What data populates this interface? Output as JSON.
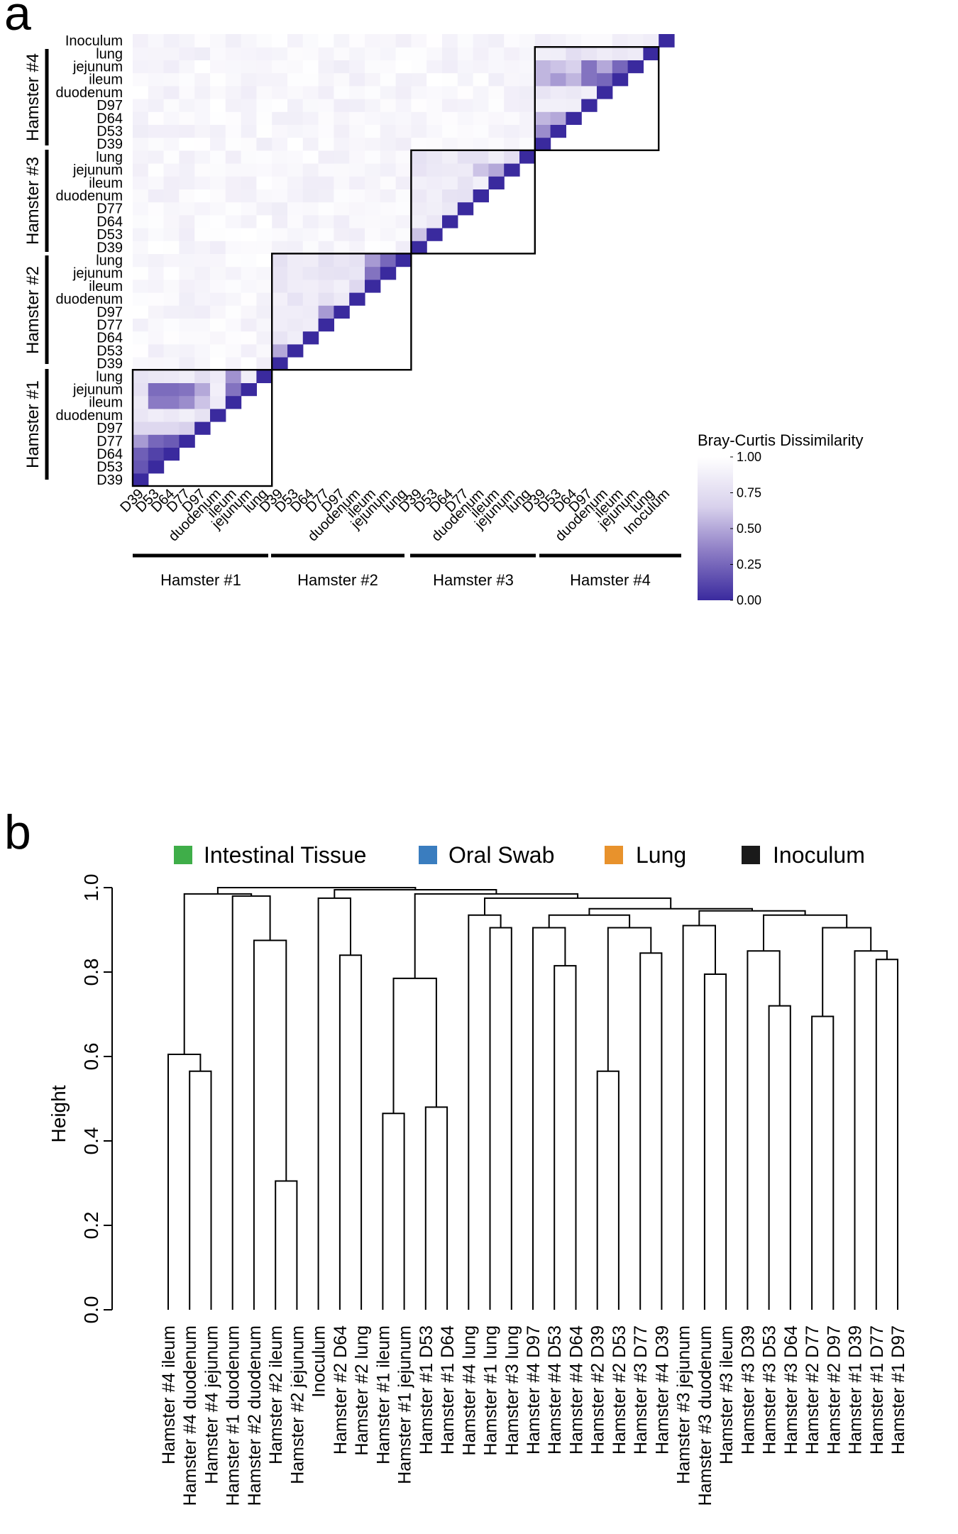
{
  "panel_a": {
    "letter": "a"
  },
  "panel_b": {
    "letter": "b"
  },
  "chart_data": [
    {
      "type": "heatmap",
      "title": "",
      "colorbar": {
        "title": "Bray-Curtis Dissimilarity",
        "ticks": [
          "1.00",
          "0.75",
          "0.50",
          "0.25",
          "0.00"
        ],
        "range": [
          0,
          1
        ],
        "low_color": "#3a2a9e",
        "mid_color": "#9d8fcf",
        "high_color": "#ffffff"
      },
      "samples": [
        {
          "group": 0,
          "label": "D39"
        },
        {
          "group": 0,
          "label": "D53"
        },
        {
          "group": 0,
          "label": "D64"
        },
        {
          "group": 0,
          "label": "D77"
        },
        {
          "group": 0,
          "label": "D97"
        },
        {
          "group": 0,
          "label": "duodenum"
        },
        {
          "group": 0,
          "label": "ileum"
        },
        {
          "group": 0,
          "label": "jejunum"
        },
        {
          "group": 0,
          "label": "lung"
        },
        {
          "group": 1,
          "label": "D39"
        },
        {
          "group": 1,
          "label": "D53"
        },
        {
          "group": 1,
          "label": "D64"
        },
        {
          "group": 1,
          "label": "D77"
        },
        {
          "group": 1,
          "label": "D97"
        },
        {
          "group": 1,
          "label": "duodenum"
        },
        {
          "group": 1,
          "label": "ileum"
        },
        {
          "group": 1,
          "label": "jejunum"
        },
        {
          "group": 1,
          "label": "lung"
        },
        {
          "group": 2,
          "label": "D39"
        },
        {
          "group": 2,
          "label": "D53"
        },
        {
          "group": 2,
          "label": "D64"
        },
        {
          "group": 2,
          "label": "D77"
        },
        {
          "group": 2,
          "label": "duodenum"
        },
        {
          "group": 2,
          "label": "ileum"
        },
        {
          "group": 2,
          "label": "jejunum"
        },
        {
          "group": 2,
          "label": "lung"
        },
        {
          "group": 3,
          "label": "D39"
        },
        {
          "group": 3,
          "label": "D53"
        },
        {
          "group": 3,
          "label": "D64"
        },
        {
          "group": 3,
          "label": "D97"
        },
        {
          "group": 3,
          "label": "duodenum"
        },
        {
          "group": 3,
          "label": "ileum"
        },
        {
          "group": 3,
          "label": "jejunum"
        },
        {
          "group": 3,
          "label": "lung"
        },
        {
          "group": 4,
          "label": "Inoculum"
        }
      ],
      "groups": [
        "Hamster #1",
        "Hamster #2",
        "Hamster #3",
        "Hamster #4"
      ],
      "notable_values": [
        {
          "a": 0,
          "b": 1,
          "value": 0.18
        },
        {
          "a": 0,
          "b": 2,
          "value": 0.22
        },
        {
          "a": 1,
          "b": 2,
          "value": 0.1
        },
        {
          "a": 0,
          "b": 3,
          "value": 0.45
        },
        {
          "a": 1,
          "b": 3,
          "value": 0.25
        },
        {
          "a": 2,
          "b": 3,
          "value": 0.2
        },
        {
          "a": 0,
          "b": 4,
          "value": 0.7
        },
        {
          "a": 1,
          "b": 4,
          "value": 0.7
        },
        {
          "a": 2,
          "b": 4,
          "value": 0.7
        },
        {
          "a": 3,
          "b": 4,
          "value": 0.65
        },
        {
          "a": 6,
          "b": 1,
          "value": 0.33
        },
        {
          "a": 6,
          "b": 2,
          "value": 0.33
        },
        {
          "a": 6,
          "b": 3,
          "value": 0.4
        },
        {
          "a": 6,
          "b": 4,
          "value": 0.6
        },
        {
          "a": 7,
          "b": 1,
          "value": 0.27
        },
        {
          "a": 7,
          "b": 2,
          "value": 0.27
        },
        {
          "a": 7,
          "b": 3,
          "value": 0.3
        },
        {
          "a": 7,
          "b": 4,
          "value": 0.5
        },
        {
          "a": 7,
          "b": 6,
          "value": 0.3
        },
        {
          "a": 6,
          "b": 8,
          "value": 0.42
        },
        {
          "a": 9,
          "b": 10,
          "value": 0.5
        },
        {
          "a": 12,
          "b": 13,
          "value": 0.45
        },
        {
          "a": 11,
          "b": 13,
          "value": 0.85
        },
        {
          "a": 15,
          "b": 14,
          "value": 0.7
        },
        {
          "a": 15,
          "b": 16,
          "value": 0.3
        },
        {
          "a": 17,
          "b": 16,
          "value": 0.25
        },
        {
          "a": 17,
          "b": 15,
          "value": 0.45
        },
        {
          "a": 18,
          "b": 19,
          "value": 0.6
        },
        {
          "a": 23,
          "b": 24,
          "value": 0.5
        },
        {
          "a": 24,
          "b": 22,
          "value": 0.6
        },
        {
          "a": 26,
          "b": 27,
          "value": 0.4
        },
        {
          "a": 26,
          "b": 28,
          "value": 0.55
        },
        {
          "a": 27,
          "b": 28,
          "value": 0.5
        },
        {
          "a": 31,
          "b": 26,
          "value": 0.55
        },
        {
          "a": 31,
          "b": 27,
          "value": 0.45
        },
        {
          "a": 31,
          "b": 28,
          "value": 0.55
        },
        {
          "a": 32,
          "b": 26,
          "value": 0.55
        },
        {
          "a": 32,
          "b": 27,
          "value": 0.6
        },
        {
          "a": 32,
          "b": 28,
          "value": 0.65
        },
        {
          "a": 31,
          "b": 29,
          "value": 0.3
        },
        {
          "a": 32,
          "b": 29,
          "value": 0.3
        },
        {
          "a": 32,
          "b": 30,
          "value": 0.5
        },
        {
          "a": 32,
          "b": 31,
          "value": 0.25
        },
        {
          "a": 31,
          "b": 30,
          "value": 0.25
        }
      ],
      "default_value": 0.93
    },
    {
      "type": "dendrogram",
      "ylabel": "Height",
      "ylim": [
        0,
        1
      ],
      "yticks": [
        "0.0",
        "0.2",
        "0.4",
        "0.6",
        "0.8",
        "1.0"
      ],
      "legend": [
        {
          "label": "Intestinal Tissue",
          "color": "#3fae49"
        },
        {
          "label": "Oral Swab",
          "color": "#3a7dbf"
        },
        {
          "label": "Lung",
          "color": "#e8922c"
        },
        {
          "label": "Inoculum",
          "color": "#1a1a1a"
        }
      ],
      "leaves": [
        {
          "label": "Hamster #4 ileum",
          "cat": 0
        },
        {
          "label": "Hamster #4 duodenum",
          "cat": 0
        },
        {
          "label": "Hamster #4 jejunum",
          "cat": 0
        },
        {
          "label": "Hamster #1 duodenum",
          "cat": 0
        },
        {
          "label": "Hamster #2 duodenum",
          "cat": 0
        },
        {
          "label": "Hamster #2 ileum",
          "cat": 0
        },
        {
          "label": "Hamster #2 jejunum",
          "cat": 0
        },
        {
          "label": "Inoculum",
          "cat": 3
        },
        {
          "label": "Hamster #2 D64",
          "cat": 1
        },
        {
          "label": "Hamster #2 lung",
          "cat": 2
        },
        {
          "label": "Hamster #1 ileum",
          "cat": 0
        },
        {
          "label": "Hamster #1 jejunum",
          "cat": 0
        },
        {
          "label": "Hamster #1 D53",
          "cat": 1
        },
        {
          "label": "Hamster #1 D64",
          "cat": 1
        },
        {
          "label": "Hamster #4 lung",
          "cat": 2
        },
        {
          "label": "Hamster #1 lung",
          "cat": 2
        },
        {
          "label": "Hamster #3 lung",
          "cat": 2
        },
        {
          "label": "Hamster #4 D97",
          "cat": 1
        },
        {
          "label": "Hamster #4 D53",
          "cat": 1
        },
        {
          "label": "Hamster #4 D64",
          "cat": 1
        },
        {
          "label": "Hamster #2 D39",
          "cat": 1
        },
        {
          "label": "Hamster #2 D53",
          "cat": 1
        },
        {
          "label": "Hamster #3 D77",
          "cat": 1
        },
        {
          "label": "Hamster #4 D39",
          "cat": 1
        },
        {
          "label": "Hamster #3 jejunum",
          "cat": 0
        },
        {
          "label": "Hamster #3 duodenum",
          "cat": 0
        },
        {
          "label": "Hamster #3 ileum",
          "cat": 0
        },
        {
          "label": "Hamster #3 D39",
          "cat": 1
        },
        {
          "label": "Hamster #3 D53",
          "cat": 1
        },
        {
          "label": "Hamster #3 D64",
          "cat": 1
        },
        {
          "label": "Hamster #2 D77",
          "cat": 1
        },
        {
          "label": "Hamster #2 D97",
          "cat": 1
        },
        {
          "label": "Hamster #1 D39",
          "cat": 1
        },
        {
          "label": "Hamster #1 D77",
          "cat": 1
        },
        {
          "label": "Hamster #1 D97",
          "cat": 1
        }
      ],
      "merges": [
        [
          -2,
          -3,
          0.565
        ],
        [
          -1,
          1,
          0.605
        ],
        [
          -6,
          -7,
          0.305
        ],
        [
          -5,
          3,
          0.875
        ],
        [
          -4,
          4,
          0.98
        ],
        [
          2,
          5,
          0.985
        ],
        [
          -9,
          -10,
          0.84
        ],
        [
          -8,
          7,
          0.975
        ],
        [
          -11,
          -12,
          0.465
        ],
        [
          -13,
          -14,
          0.48
        ],
        [
          9,
          10,
          0.785
        ],
        [
          -16,
          -17,
          0.905
        ],
        [
          -15,
          12,
          0.935
        ],
        [
          -19,
          -20,
          0.815
        ],
        [
          -18,
          14,
          0.905
        ],
        [
          -21,
          -22,
          0.565
        ],
        [
          -23,
          -24,
          0.845
        ],
        [
          16,
          17,
          0.905
        ],
        [
          15,
          18,
          0.935
        ],
        [
          -26,
          -27,
          0.795
        ],
        [
          -25,
          20,
          0.91
        ],
        [
          -29,
          -30,
          0.72
        ],
        [
          -28,
          22,
          0.85
        ],
        [
          -31,
          -32,
          0.695
        ],
        [
          -34,
          -35,
          0.83
        ],
        [
          -33,
          25,
          0.85
        ],
        [
          24,
          26,
          0.905
        ],
        [
          23,
          27,
          0.935
        ],
        [
          21,
          28,
          0.945
        ],
        [
          19,
          29,
          0.95
        ],
        [
          13,
          30,
          0.975
        ],
        [
          11,
          31,
          0.985
        ],
        [
          8,
          32,
          0.995
        ],
        [
          6,
          33,
          1.0
        ]
      ]
    }
  ]
}
